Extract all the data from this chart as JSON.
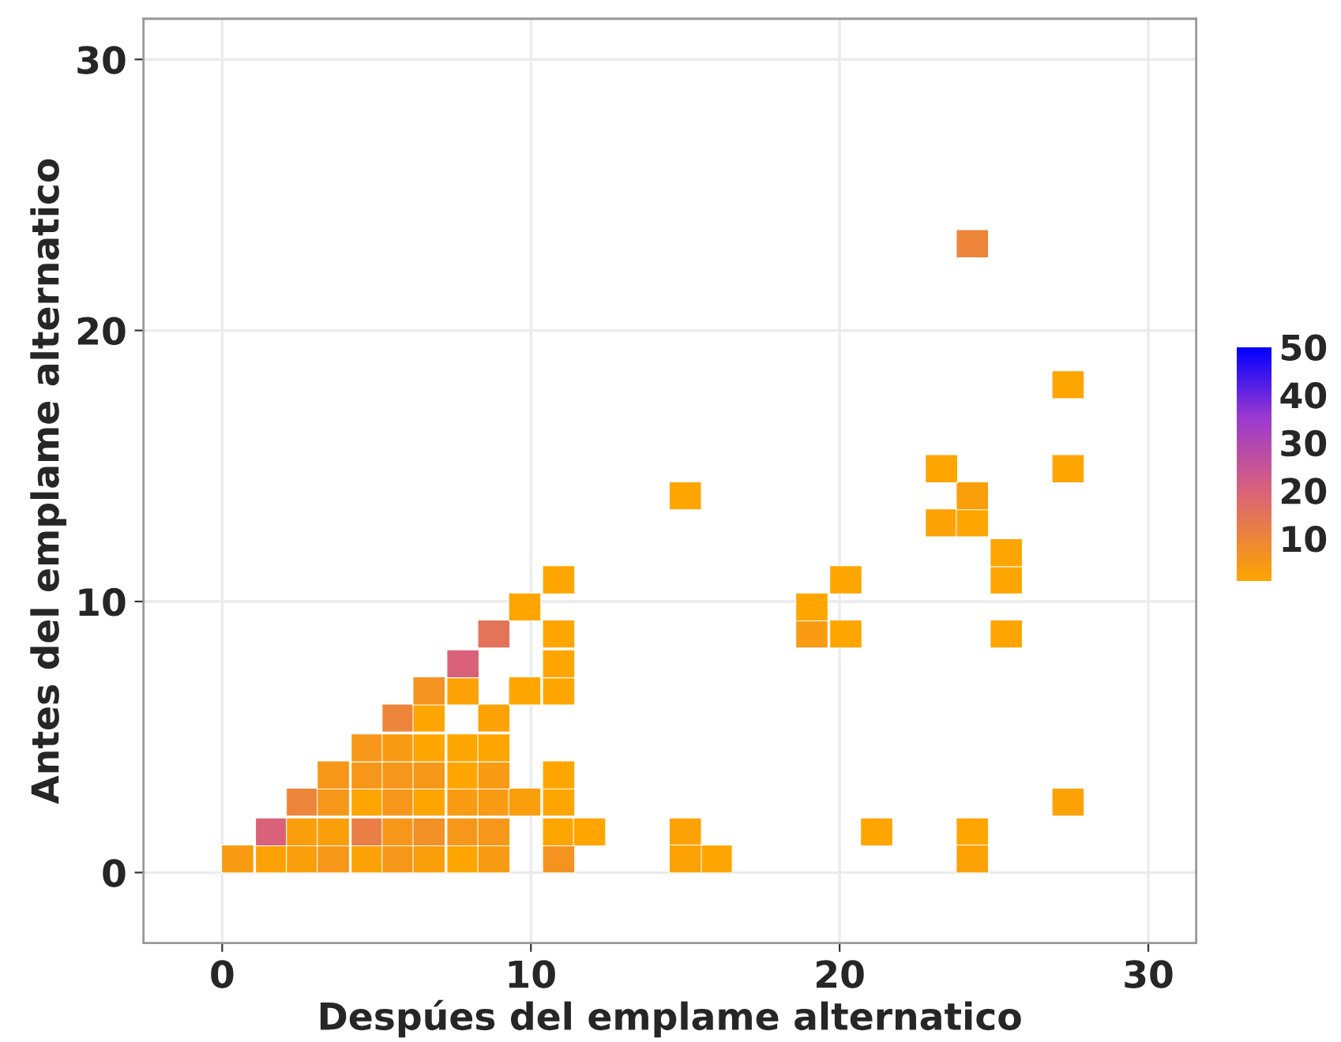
{
  "chart_data": {
    "type": "scatter",
    "xlabel": "Despúes del emplame alternatico",
    "ylabel": "Antes del emplame alternatico",
    "x": [
      0.5,
      1.6,
      2.6,
      3.6,
      4.7,
      5.7,
      6.7,
      7.8,
      8.8,
      10.9,
      1.6,
      2.6,
      3.6,
      4.7,
      5.7,
      6.7,
      7.8,
      8.8,
      10.9,
      11.9,
      2.6,
      3.6,
      4.7,
      5.7,
      6.7,
      7.8,
      8.8,
      9.8,
      10.9,
      3.6,
      4.7,
      5.7,
      6.7,
      7.8,
      8.8,
      10.9,
      4.7,
      5.7,
      6.7,
      7.8,
      8.8,
      5.7,
      6.7,
      8.8,
      6.7,
      7.8,
      9.8,
      10.9,
      7.8,
      10.9,
      8.8,
      10.9,
      9.8,
      10.9,
      15.0,
      16.0,
      15.0,
      21.2,
      24.3,
      24.3,
      27.4,
      19.1,
      20.2,
      25.4,
      19.1,
      20.2,
      25.4,
      25.4,
      23.3,
      24.3,
      24.3,
      15.0,
      23.3,
      27.4,
      27.4,
      24.3
    ],
    "values": [
      0.5,
      0.5,
      0.5,
      0.5,
      0.5,
      0.5,
      0.5,
      0.5,
      0.5,
      0.5,
      1.5,
      1.5,
      1.5,
      1.5,
      1.5,
      1.5,
      1.5,
      1.5,
      1.5,
      1.5,
      2.6,
      2.6,
      2.6,
      2.6,
      2.6,
      2.6,
      2.6,
      2.6,
      2.6,
      3.6,
      3.6,
      3.6,
      3.6,
      3.6,
      3.6,
      3.6,
      4.6,
      4.6,
      4.6,
      4.6,
      4.6,
      5.7,
      5.7,
      5.7,
      6.7,
      6.7,
      6.7,
      6.7,
      7.7,
      7.7,
      8.8,
      8.8,
      9.8,
      10.8,
      1.5,
      0.5,
      0.5,
      1.5,
      1.5,
      0.5,
      2.6,
      8.8,
      8.8,
      8.8,
      9.8,
      10.8,
      10.8,
      11.8,
      12.9,
      12.9,
      13.9,
      13.9,
      14.9,
      14.9,
      18.0,
      23.2
    ],
    "cvalues": [
      4,
      2,
      3,
      5,
      2,
      5,
      3,
      1,
      4,
      6,
      20,
      3,
      3,
      12,
      5,
      7,
      5,
      5,
      1,
      1,
      10,
      5,
      1,
      5,
      1,
      4,
      4,
      3,
      1,
      5,
      5,
      5,
      5,
      1,
      4,
      1,
      5,
      4,
      1,
      1,
      1,
      10,
      1,
      2,
      6,
      2,
      1,
      1,
      20,
      1,
      15,
      1,
      1,
      1,
      2,
      1,
      2,
      1,
      1,
      2,
      2,
      4,
      1,
      1,
      1,
      1,
      1,
      1,
      2,
      1,
      3,
      1,
      1,
      1,
      1,
      10
    ],
    "marker": "square",
    "xlim": [
      -2.55,
      31.55
    ],
    "ylim": [
      -2.6,
      31.5
    ],
    "xticks": [
      0,
      10,
      20,
      30
    ],
    "yticks": [
      0,
      10,
      20,
      30
    ],
    "clim": [
      1,
      50
    ],
    "cticks": [
      10,
      20,
      30,
      40,
      50
    ],
    "grid": true
  }
}
